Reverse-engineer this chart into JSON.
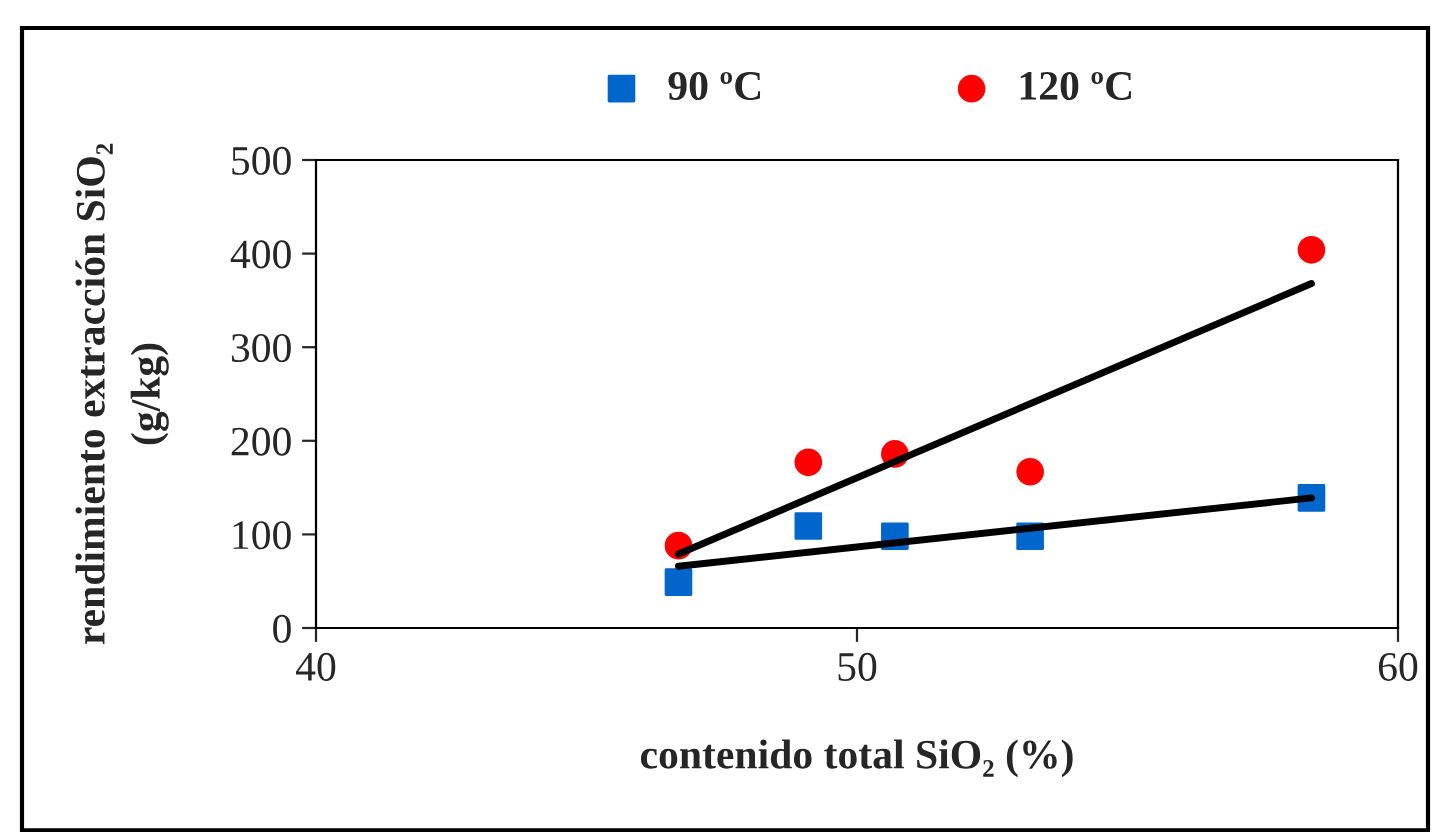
{
  "chart_data": {
    "type": "scatter",
    "xlabel": "contenido total SiO₂ (%)",
    "ylabel": "rendimiento extracción SiO₂\n(g/kg)",
    "xlim": [
      40,
      60
    ],
    "xticks": [
      40,
      50,
      60
    ],
    "ylim": [
      0,
      500
    ],
    "yticks": [
      0,
      100,
      200,
      300,
      400,
      500
    ],
    "grid": false,
    "legend": "top",
    "series": [
      {
        "name": "90 ºC",
        "color": "#0066cc",
        "marker": "square",
        "x": [
          46.7,
          49.1,
          50.7,
          53.2,
          58.4
        ],
        "values": [
          49,
          109,
          98,
          98,
          139
        ]
      },
      {
        "name": "120 ºC",
        "color": "#ff0000",
        "marker": "circle",
        "x": [
          46.7,
          49.1,
          50.7,
          53.2,
          58.4
        ],
        "values": [
          88,
          177,
          186,
          167,
          404
        ]
      },
      {
        "type": "line",
        "color": "#000000",
        "marker": "none",
        "x": [
          46.7,
          58.4
        ],
        "values": [
          66,
          139
        ]
      },
      {
        "type": "line",
        "color": "#000000",
        "marker": "none",
        "x": [
          46.7,
          58.4
        ],
        "values": [
          79,
          368
        ]
      }
    ]
  }
}
